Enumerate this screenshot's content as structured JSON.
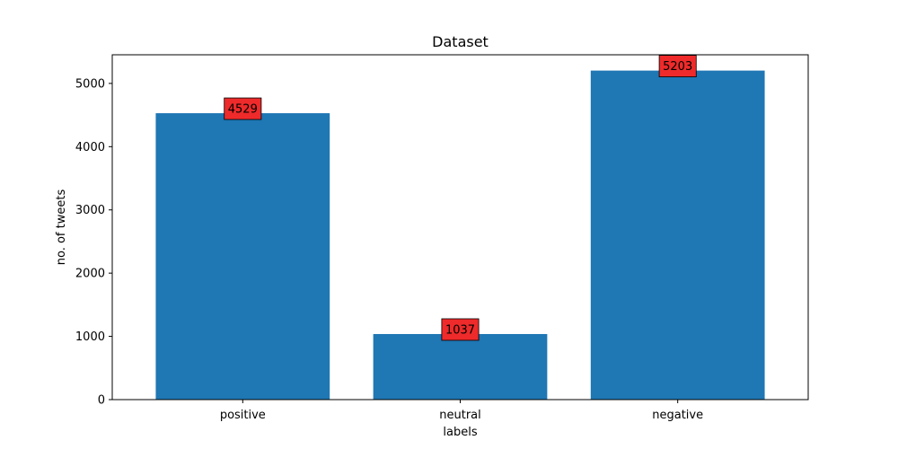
{
  "chart_data": {
    "type": "bar",
    "title": "Dataset",
    "xlabel": "labels",
    "ylabel": "no. of tweets",
    "categories": [
      "positive",
      "neutral",
      "negative"
    ],
    "values": [
      4529,
      1037,
      5203
    ],
    "data_labels": [
      "4529",
      "1037",
      "5203"
    ],
    "ylim": [
      0,
      5453
    ],
    "yticks": [
      0,
      1000,
      2000,
      3000,
      4000,
      5000
    ],
    "ytick_labels": [
      "0",
      "1000",
      "2000",
      "3000",
      "4000",
      "5000"
    ],
    "grid": false,
    "legend": "none",
    "colors": {
      "bar": "#1f77b4",
      "label_box": "#ee2a2a",
      "axis": "#000000"
    }
  }
}
